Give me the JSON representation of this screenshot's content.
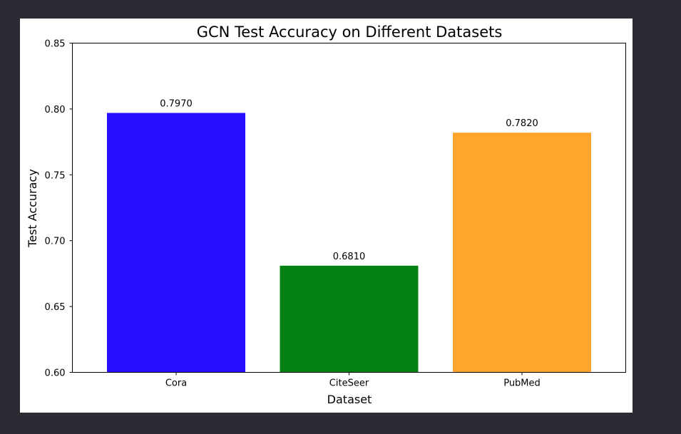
{
  "chart_data": {
    "type": "bar",
    "title": "GCN Test Accuracy on Different Datasets",
    "xlabel": "Dataset",
    "ylabel": "Test Accuracy",
    "categories": [
      "Cora",
      "CiteSeer",
      "PubMed"
    ],
    "values": [
      0.797,
      0.681,
      0.782
    ],
    "value_labels": [
      "0.7970",
      "0.6810",
      "0.7820"
    ],
    "colors": [
      "#2a0eff",
      "#058013",
      "#ffa52c"
    ],
    "ylim": [
      0.6,
      0.85
    ],
    "yticks": [
      0.6,
      0.65,
      0.7,
      0.75,
      0.8,
      0.85
    ],
    "ytick_labels": [
      "0.60",
      "0.65",
      "0.70",
      "0.75",
      "0.80",
      "0.85"
    ],
    "grid": false,
    "legend": "none"
  }
}
